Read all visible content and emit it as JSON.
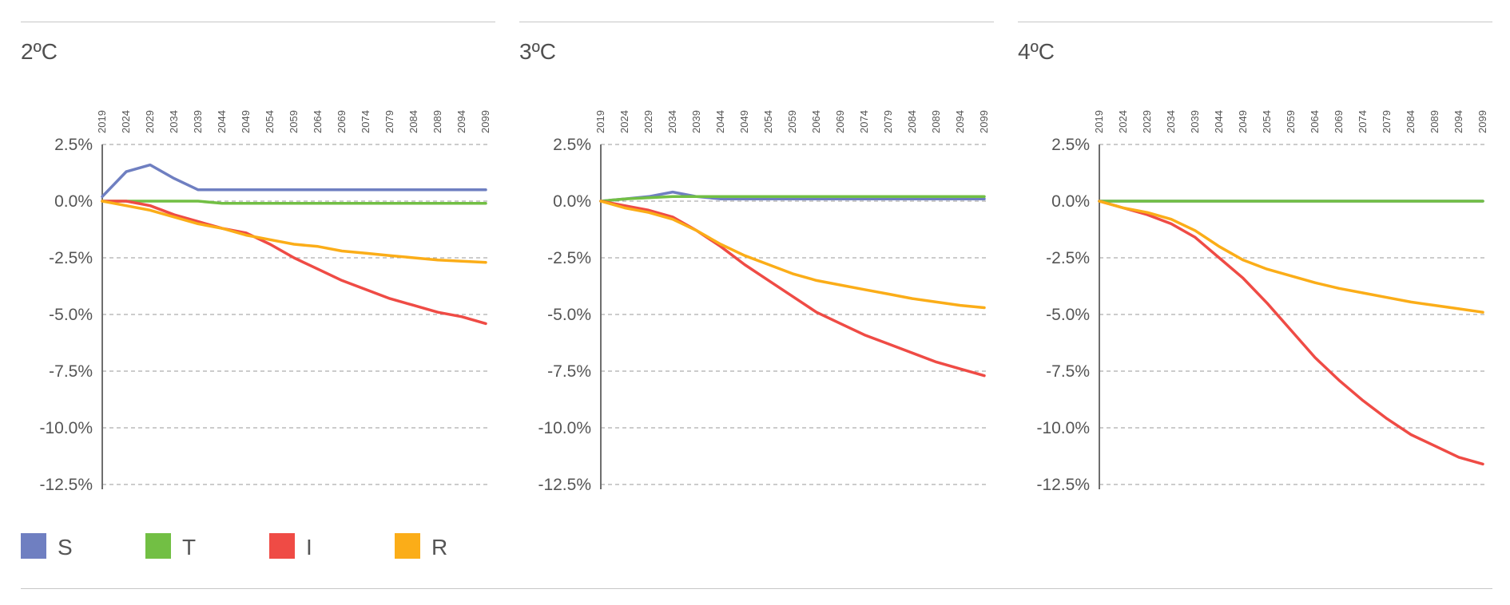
{
  "legend": [
    {
      "key": "S",
      "label": "S",
      "color": "#6f7fc1"
    },
    {
      "key": "T",
      "label": "T",
      "color": "#72bf44"
    },
    {
      "key": "I",
      "label": "I",
      "color": "#ef4b45"
    },
    {
      "key": "R",
      "label": "R",
      "color": "#fbad18"
    }
  ],
  "chart_data": [
    {
      "type": "line",
      "title": "2ºC",
      "x": [
        2019,
        2024,
        2029,
        2034,
        2039,
        2044,
        2049,
        2054,
        2059,
        2064,
        2069,
        2074,
        2079,
        2084,
        2089,
        2094,
        2099
      ],
      "x_tick_labels": [
        "2019",
        "2024",
        "2029",
        "2034",
        "2039",
        "2044",
        "2049",
        "2054",
        "2059",
        "2064",
        "2069",
        "2074",
        "2079",
        "2084",
        "2089",
        "2094",
        "2099"
      ],
      "y_tick_labels": [
        "2.5%",
        "0.0%",
        "-2.5%",
        "-5.0%",
        "-7.5%",
        "-10.0%",
        "-12.5%"
      ],
      "ylim": [
        -12.5,
        2.5
      ],
      "grid": "horizontal-dashed",
      "series": [
        {
          "key": "S",
          "values": [
            0.2,
            1.3,
            1.6,
            1.0,
            0.5,
            0.5,
            0.5,
            0.5,
            0.5,
            0.5,
            0.5,
            0.5,
            0.5,
            0.5,
            0.5,
            0.5,
            0.5
          ]
        },
        {
          "key": "T",
          "values": [
            0.0,
            0.0,
            0.0,
            0.0,
            0.0,
            -0.1,
            -0.1,
            -0.1,
            -0.1,
            -0.1,
            -0.1,
            -0.1,
            -0.1,
            -0.1,
            -0.1,
            -0.1,
            -0.1
          ]
        },
        {
          "key": "I",
          "values": [
            0.0,
            0.0,
            -0.2,
            -0.6,
            -0.9,
            -1.2,
            -1.4,
            -1.9,
            -2.5,
            -3.0,
            -3.5,
            -3.9,
            -4.3,
            -4.6,
            -4.9,
            -5.1,
            -5.4
          ]
        },
        {
          "key": "R",
          "values": [
            0.0,
            -0.2,
            -0.4,
            -0.7,
            -1.0,
            -1.2,
            -1.5,
            -1.7,
            -1.9,
            -2.0,
            -2.2,
            -2.3,
            -2.4,
            -2.5,
            -2.6,
            -2.65,
            -2.7
          ]
        }
      ]
    },
    {
      "type": "line",
      "title": "3ºC",
      "x": [
        2019,
        2024,
        2029,
        2034,
        2039,
        2044,
        2049,
        2054,
        2059,
        2064,
        2069,
        2074,
        2079,
        2084,
        2089,
        2094,
        2099
      ],
      "x_tick_labels": [
        "2019",
        "2024",
        "2029",
        "2034",
        "2039",
        "2044",
        "2049",
        "2054",
        "2059",
        "2064",
        "2069",
        "2074",
        "2079",
        "2084",
        "2089",
        "2094",
        "2099"
      ],
      "y_tick_labels": [
        "2.5%",
        "0.0%",
        "-2.5%",
        "-5.0%",
        "-7.5%",
        "-10.0%",
        "-12.5%"
      ],
      "ylim": [
        -12.5,
        2.5
      ],
      "grid": "horizontal-dashed",
      "series": [
        {
          "key": "S",
          "values": [
            0.0,
            0.1,
            0.2,
            0.4,
            0.2,
            0.1,
            0.1,
            0.1,
            0.1,
            0.1,
            0.1,
            0.1,
            0.1,
            0.1,
            0.1,
            0.1,
            0.1
          ]
        },
        {
          "key": "T",
          "values": [
            0.0,
            0.1,
            0.15,
            0.2,
            0.2,
            0.2,
            0.2,
            0.2,
            0.2,
            0.2,
            0.2,
            0.2,
            0.2,
            0.2,
            0.2,
            0.2,
            0.2
          ]
        },
        {
          "key": "I",
          "values": [
            0.0,
            -0.2,
            -0.4,
            -0.7,
            -1.3,
            -2.0,
            -2.8,
            -3.5,
            -4.2,
            -4.9,
            -5.4,
            -5.9,
            -6.3,
            -6.7,
            -7.1,
            -7.4,
            -7.7
          ]
        },
        {
          "key": "R",
          "values": [
            0.0,
            -0.3,
            -0.5,
            -0.8,
            -1.3,
            -1.9,
            -2.4,
            -2.8,
            -3.2,
            -3.5,
            -3.7,
            -3.9,
            -4.1,
            -4.3,
            -4.45,
            -4.6,
            -4.7
          ]
        }
      ]
    },
    {
      "type": "line",
      "title": "4ºC",
      "x": [
        2019,
        2024,
        2029,
        2034,
        2039,
        2044,
        2049,
        2054,
        2059,
        2064,
        2069,
        2074,
        2079,
        2084,
        2089,
        2094,
        2099
      ],
      "x_tick_labels": [
        "2019",
        "2024",
        "2029",
        "2034",
        "2039",
        "2044",
        "2049",
        "2054",
        "2059",
        "2064",
        "2069",
        "2074",
        "2079",
        "2084",
        "2089",
        "2094",
        "2099"
      ],
      "y_tick_labels": [
        "2.5%",
        "0.0%",
        "-2.5%",
        "-5.0%",
        "-7.5%",
        "-10.0%",
        "-12.5%"
      ],
      "ylim": [
        -12.5,
        2.5
      ],
      "grid": "horizontal-dashed",
      "series": [
        {
          "key": "S",
          "values": [
            0.0,
            0.0,
            0.0,
            0.0,
            0.0,
            0.0,
            0.0,
            0.0,
            0.0,
            0.0,
            0.0,
            0.0,
            0.0,
            0.0,
            0.0,
            0.0,
            0.0
          ]
        },
        {
          "key": "T",
          "values": [
            0.0,
            0.0,
            0.0,
            0.0,
            0.0,
            0.0,
            0.0,
            0.0,
            0.0,
            0.0,
            0.0,
            0.0,
            0.0,
            0.0,
            0.0,
            0.0,
            0.0
          ]
        },
        {
          "key": "I",
          "values": [
            0.0,
            -0.3,
            -0.6,
            -1.0,
            -1.6,
            -2.5,
            -3.4,
            -4.5,
            -5.7,
            -6.9,
            -7.9,
            -8.8,
            -9.6,
            -10.3,
            -10.8,
            -11.3,
            -11.6
          ]
        },
        {
          "key": "R",
          "values": [
            0.0,
            -0.3,
            -0.5,
            -0.8,
            -1.3,
            -2.0,
            -2.6,
            -3.0,
            -3.3,
            -3.6,
            -3.85,
            -4.05,
            -4.25,
            -4.45,
            -4.6,
            -4.75,
            -4.9
          ]
        }
      ]
    }
  ]
}
